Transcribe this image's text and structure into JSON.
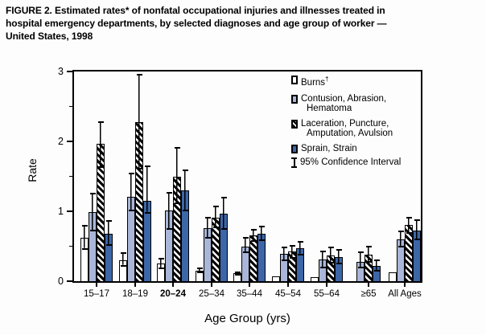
{
  "figure": {
    "title_lines": [
      "FIGURE 2. Estimated rates* of nonfatal occupational injuries and illnesses treated in",
      "hospital emergency departments, by selected diagnoses and age group of worker —",
      "United States, 1998"
    ]
  },
  "legend": {
    "items": [
      {
        "swatch": "burns",
        "label": "Burns",
        "sup": "†"
      },
      {
        "swatch": "contusion",
        "label": "Contusion, Abrasion,",
        "label2": "Hematoma"
      },
      {
        "swatch": "laceration",
        "label": "Laceration, Puncture,",
        "label2": "Amputation, Avulsion"
      },
      {
        "swatch": "sprain",
        "label": "Sprain, Strain"
      },
      {
        "swatch": "ci",
        "label": "95% Confidence Interval"
      }
    ]
  },
  "chart_data": {
    "type": "bar",
    "title": "FIGURE 2. Estimated rates* of nonfatal occupational injuries and illnesses treated in hospital emergency departments, by selected diagnoses and age group of worker — United States, 1998",
    "xlabel": "Age Group (yrs)",
    "ylabel": "Rate",
    "ylim": [
      0,
      3
    ],
    "yticks": [
      0,
      1,
      2,
      3
    ],
    "yticks_minor": [
      0.5,
      1.5,
      2.5
    ],
    "grid": false,
    "legend_position": "top-right-inside",
    "error_bars": "95% Confidence Interval",
    "categories": [
      "15–17",
      "18–19",
      "20–24",
      "25–34",
      "35–44",
      "45–54",
      "55–64",
      "≥65",
      "All Ages"
    ],
    "bold_categories": [
      "20–24"
    ],
    "series": [
      {
        "key": "burns",
        "name": "Burns†",
        "color": "#ffffff",
        "values": [
          0.62,
          0.3,
          0.25,
          0.15,
          0.11,
          0.07,
          0.06,
          null,
          0.13
        ],
        "ci_low": [
          0.45,
          0.21,
          0.17,
          0.11,
          0.08,
          null,
          null,
          null,
          null
        ],
        "ci_high": [
          0.8,
          0.41,
          0.33,
          0.19,
          0.14,
          null,
          null,
          null,
          null
        ]
      },
      {
        "key": "contusion",
        "name": "Contusion, Abrasion, Hematoma",
        "color": "#a9b6d8",
        "values": [
          0.99,
          1.21,
          1.01,
          0.76,
          0.5,
          0.39,
          0.31,
          0.28,
          0.6
        ],
        "ci_low": [
          0.71,
          1.0,
          0.74,
          0.61,
          0.4,
          0.29,
          0.18,
          0.18,
          0.48
        ],
        "ci_high": [
          1.27,
          1.55,
          1.28,
          0.92,
          0.63,
          0.5,
          0.44,
          0.42,
          0.72
        ]
      },
      {
        "key": "laceration",
        "name": "Laceration, Puncture, Amputation, Avulsion",
        "color": "black-white-diagonal-hatch",
        "values": [
          1.96,
          2.28,
          1.5,
          0.91,
          0.66,
          0.42,
          0.37,
          0.38,
          0.8
        ],
        "ci_low": [
          1.62,
          1.6,
          1.1,
          0.76,
          0.56,
          0.32,
          0.25,
          0.26,
          0.68
        ],
        "ci_high": [
          2.29,
          2.97,
          1.92,
          1.08,
          0.75,
          0.52,
          0.49,
          0.51,
          0.92
        ]
      },
      {
        "key": "sprain",
        "name": "Sprain, Strain",
        "color": "#3c66a8",
        "values": [
          0.68,
          1.15,
          1.3,
          0.96,
          0.68,
          0.47,
          0.35,
          0.22,
          0.73
        ],
        "ci_low": [
          0.5,
          0.97,
          1.0,
          0.74,
          0.57,
          0.37,
          0.24,
          0.14,
          0.59
        ],
        "ci_high": [
          0.87,
          1.65,
          1.6,
          1.21,
          0.79,
          0.57,
          0.46,
          0.31,
          0.89
        ]
      }
    ]
  }
}
